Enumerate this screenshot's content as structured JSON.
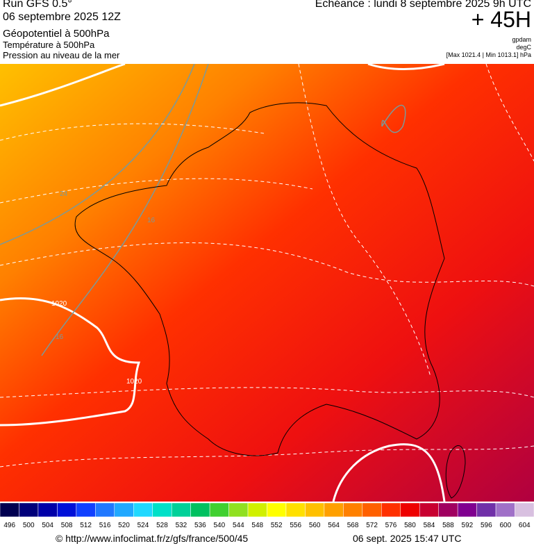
{
  "header": {
    "run": "Run GFS 0.5°",
    "date": "06 septembre 2025 12Z",
    "layers": [
      "Géopotentiel à 500hPa",
      "Température à 500hPa",
      "Pression au niveau de la mer"
    ],
    "forecast": "Echéance : lundi 8 septembre 2025 9h UTC",
    "lead": "+ 45H",
    "units": [
      "gpdam",
      "degC",
      "[Max 1021.4 | Min 1013.1] hPa"
    ]
  },
  "map": {
    "contour_labels": [
      "24",
      "16",
      "1020",
      "16",
      "1020"
    ]
  },
  "colorbar": {
    "labels": [
      496,
      500,
      504,
      508,
      512,
      516,
      520,
      524,
      528,
      532,
      536,
      540,
      544,
      548,
      552,
      556,
      560,
      564,
      568,
      572,
      576,
      580,
      584,
      588,
      592,
      596,
      600,
      604
    ],
    "colors": [
      "#000050",
      "#00007a",
      "#0000a8",
      "#0010d8",
      "#1040ff",
      "#2078ff",
      "#20a8ff",
      "#20d8ff",
      "#00e0c8",
      "#00d098",
      "#00c060",
      "#40d030",
      "#90e020",
      "#d0f000",
      "#ffff00",
      "#ffe000",
      "#ffc000",
      "#ffa000",
      "#ff8000",
      "#ff6000",
      "#ff3000",
      "#ee0000",
      "#c80030",
      "#a00060",
      "#800090",
      "#7030a8",
      "#a070c8",
      "#d8c0e0"
    ]
  },
  "footer": {
    "url": "© http://www.infoclimat.fr/z/gfs/france/500/45",
    "timestamp": "06 sept. 2025 15:47 UTC"
  }
}
